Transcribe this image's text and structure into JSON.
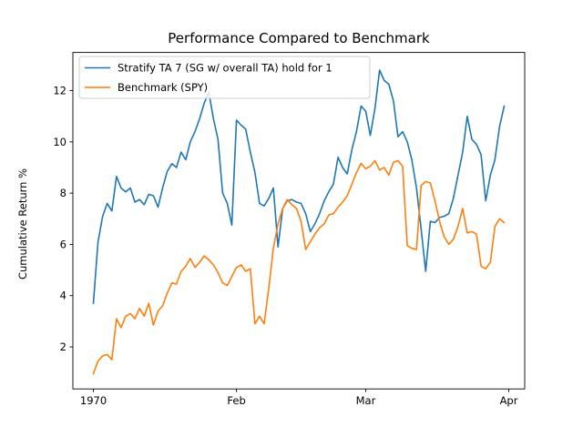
{
  "figure": {
    "title": "Performance Compared to Benchmark",
    "ylabel": "Cumulative Return %",
    "background": "#ffffff"
  },
  "legend": {
    "position": "upper left",
    "items": [
      {
        "label": "Stratify TA 7 (SG w/ overall TA) hold for 1",
        "color": "#1f77b4"
      },
      {
        "label": "Benchmark (SPY)",
        "color": "#ff7f0e"
      }
    ]
  },
  "chart_data": {
    "type": "line",
    "title": "Performance Compared to Benchmark",
    "xlabel": "",
    "ylabel": "Cumulative Return %",
    "grid": false,
    "legend_position": "upper left",
    "x_axis": {
      "unit": "days since Jan 1, 1970",
      "tick_labels": [
        "1970",
        "Feb",
        "Mar",
        "Apr"
      ],
      "tick_days": [
        0,
        31,
        59,
        90
      ],
      "xlim_days": [
        -4.45,
        93.45
      ]
    },
    "y_ticks": [
      2,
      4,
      6,
      8,
      10,
      12
    ],
    "ylim": [
      0.36,
      13.49
    ],
    "series": [
      {
        "name": "Stratify TA 7 (SG w/ overall TA) hold for 1",
        "color": "#1f77b4",
        "start_day": 0,
        "values": [
          3.7,
          6.1,
          7.1,
          7.6,
          7.3,
          8.65,
          8.2,
          8.05,
          8.2,
          7.65,
          7.75,
          7.55,
          7.95,
          7.9,
          7.45,
          8.2,
          8.85,
          9.15,
          9.0,
          9.6,
          9.3,
          10.0,
          10.4,
          10.9,
          11.5,
          11.95,
          10.9,
          10.1,
          8.0,
          7.6,
          6.75,
          10.85,
          10.65,
          10.5,
          9.6,
          8.8,
          7.6,
          7.5,
          7.8,
          8.2,
          5.9,
          7.4,
          7.7,
          7.75,
          7.65,
          7.6,
          7.2,
          6.5,
          6.8,
          7.2,
          7.7,
          8.05,
          8.35,
          9.4,
          9.0,
          8.75,
          9.7,
          10.4,
          11.4,
          11.2,
          10.25,
          11.3,
          12.8,
          12.4,
          12.25,
          11.6,
          10.2,
          10.4,
          10.0,
          9.3,
          8.2,
          6.6,
          4.95,
          6.9,
          6.85,
          7.05,
          7.1,
          7.2,
          7.8,
          8.7,
          9.6,
          11.0,
          10.1,
          9.9,
          9.5,
          7.7,
          8.7,
          9.3,
          10.6,
          11.4
        ]
      },
      {
        "name": "Benchmark (SPY)",
        "color": "#ff7f0e",
        "start_day": 0,
        "values": [
          0.95,
          1.45,
          1.65,
          1.7,
          1.5,
          3.1,
          2.75,
          3.2,
          3.3,
          3.1,
          3.5,
          3.2,
          3.7,
          2.85,
          3.4,
          3.6,
          4.1,
          4.5,
          4.45,
          4.95,
          5.15,
          5.45,
          5.1,
          5.3,
          5.55,
          5.4,
          5.2,
          4.9,
          4.5,
          4.4,
          4.75,
          5.1,
          5.2,
          4.95,
          5.05,
          2.9,
          3.2,
          2.9,
          4.3,
          5.85,
          6.8,
          7.4,
          7.75,
          7.55,
          7.4,
          6.9,
          5.8,
          6.1,
          6.4,
          6.65,
          6.8,
          7.15,
          7.2,
          7.45,
          7.65,
          7.9,
          8.35,
          8.8,
          9.16,
          8.95,
          9.05,
          9.27,
          8.9,
          9.0,
          8.7,
          9.2,
          9.27,
          9.05,
          5.95,
          5.85,
          5.8,
          8.3,
          8.45,
          8.4,
          7.7,
          6.9,
          6.3,
          6.0,
          6.2,
          6.7,
          7.4,
          6.45,
          6.5,
          6.4,
          5.15,
          5.05,
          5.3,
          6.7,
          7.0,
          6.85
        ]
      }
    ]
  }
}
